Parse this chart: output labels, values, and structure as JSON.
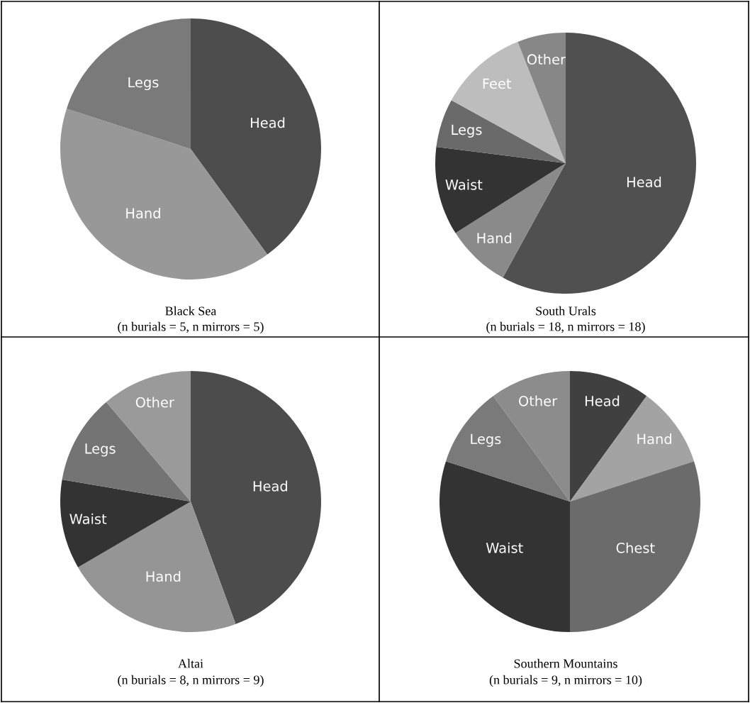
{
  "chart_data": [
    {
      "type": "pie",
      "title": "Black Sea",
      "subtitle": "(n burials = 5, n mirrors = 5)",
      "categories": [
        "Head",
        "Hand",
        "Legs"
      ],
      "values": [
        40,
        40,
        20
      ],
      "colors": [
        "#4d4d4d",
        "#989898",
        "#7a7a7a"
      ]
    },
    {
      "type": "pie",
      "title": "South Urals",
      "subtitle": "(n burials = 18, n mirrors = 18)",
      "categories": [
        "Head",
        "Hand",
        "Waist",
        "Legs",
        "Feet",
        "Other"
      ],
      "values": [
        58,
        8,
        11,
        6,
        11,
        6
      ],
      "colors": [
        "#505050",
        "#8a8a8a",
        "#333333",
        "#6a6a6a",
        "#bdbdbd",
        "#878787"
      ]
    },
    {
      "type": "pie",
      "title": "Altai",
      "subtitle": "(n burials = 8, n mirrors = 9)",
      "categories": [
        "Head",
        "Hand",
        "Waist",
        "Legs",
        "Other"
      ],
      "values": [
        44.4,
        22.2,
        11.1,
        11.1,
        11.2
      ],
      "colors": [
        "#4c4c4c",
        "#959595",
        "#333333",
        "#747474",
        "#9a9a9a"
      ]
    },
    {
      "type": "pie",
      "title": "Southern Mountains",
      "subtitle": "(n burials = 9, n mirrors = 10)",
      "categories": [
        "Head",
        "Hand",
        "Chest",
        "Waist",
        "Legs",
        "Other"
      ],
      "values": [
        10,
        10,
        30,
        30,
        10,
        10
      ],
      "colors": [
        "#404040",
        "#a3a3a3",
        "#6b6b6b",
        "#333333",
        "#7a7a7a",
        "#8c8c8c"
      ]
    }
  ]
}
